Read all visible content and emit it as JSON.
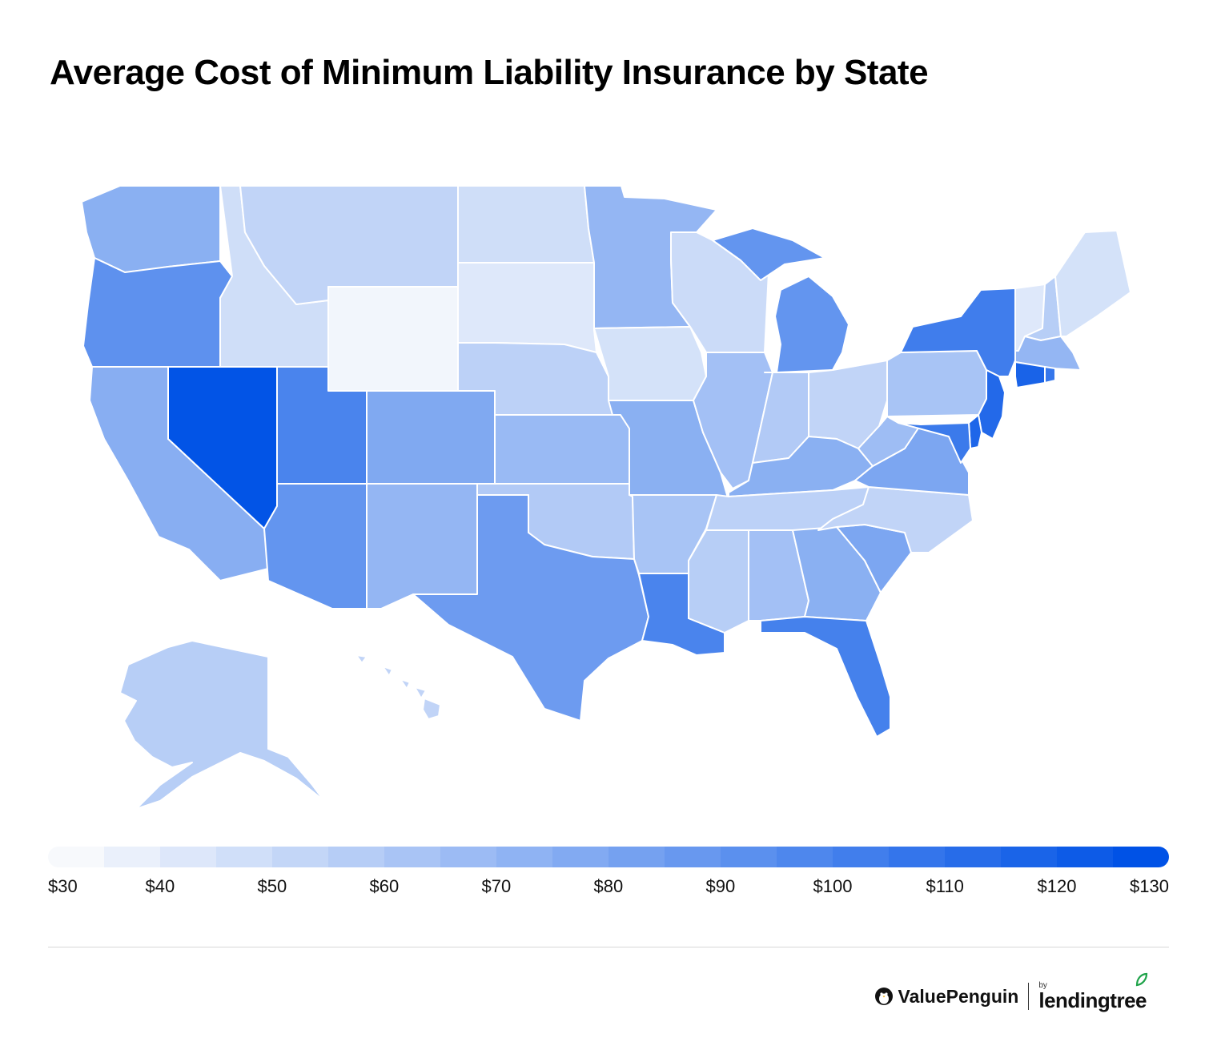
{
  "title": "Average Cost of Minimum Liability Insurance by State",
  "map": {
    "value_domain": [
      30,
      130
    ],
    "color_low": "#f7f9fc",
    "color_high": "#0052e6",
    "border_color": "#ffffff",
    "states": [
      {
        "name": "Washington",
        "value": 74
      },
      {
        "name": "Oregon",
        "value": 92
      },
      {
        "name": "California",
        "value": 75
      },
      {
        "name": "Nevada",
        "value": 129
      },
      {
        "name": "Idaho",
        "value": 46
      },
      {
        "name": "Montana",
        "value": 52
      },
      {
        "name": "Wyoming",
        "value": 32
      },
      {
        "name": "Utah",
        "value": 100
      },
      {
        "name": "Arizona",
        "value": 90
      },
      {
        "name": "Colorado",
        "value": 78
      },
      {
        "name": "New Mexico",
        "value": 70
      },
      {
        "name": "North Dakota",
        "value": 46
      },
      {
        "name": "South Dakota",
        "value": 40
      },
      {
        "name": "Nebraska",
        "value": 54
      },
      {
        "name": "Kansas",
        "value": 68
      },
      {
        "name": "Oklahoma",
        "value": 58
      },
      {
        "name": "Texas",
        "value": 86
      },
      {
        "name": "Minnesota",
        "value": 70
      },
      {
        "name": "Iowa",
        "value": 44
      },
      {
        "name": "Missouri",
        "value": 74
      },
      {
        "name": "Arkansas",
        "value": 62
      },
      {
        "name": "Louisiana",
        "value": 100
      },
      {
        "name": "Wisconsin",
        "value": 48
      },
      {
        "name": "Illinois",
        "value": 64
      },
      {
        "name": "Michigan",
        "value": 90
      },
      {
        "name": "Indiana",
        "value": 58
      },
      {
        "name": "Ohio",
        "value": 52
      },
      {
        "name": "Kentucky",
        "value": 74
      },
      {
        "name": "Tennessee",
        "value": 54
      },
      {
        "name": "Mississippi",
        "value": 56
      },
      {
        "name": "Alabama",
        "value": 64
      },
      {
        "name": "Georgia",
        "value": 74
      },
      {
        "name": "Florida",
        "value": 102
      },
      {
        "name": "South Carolina",
        "value": 80
      },
      {
        "name": "North Carolina",
        "value": 52
      },
      {
        "name": "Virginia",
        "value": 80
      },
      {
        "name": "West Virginia",
        "value": 66
      },
      {
        "name": "Pennsylvania",
        "value": 62
      },
      {
        "name": "New York",
        "value": 104
      },
      {
        "name": "Vermont",
        "value": 40
      },
      {
        "name": "New Hampshire",
        "value": 56
      },
      {
        "name": "Maine",
        "value": 44
      },
      {
        "name": "Massachusetts",
        "value": 70
      },
      {
        "name": "Rhode Island",
        "value": 108
      },
      {
        "name": "Connecticut",
        "value": 120
      },
      {
        "name": "New Jersey",
        "value": 116
      },
      {
        "name": "Delaware",
        "value": 118
      },
      {
        "name": "Maryland",
        "value": 106
      },
      {
        "name": "Alaska",
        "value": 56
      },
      {
        "name": "Hawaii",
        "value": 52
      }
    ]
  },
  "legend": {
    "segments": 20,
    "ticks": [
      "$30",
      "$40",
      "$50",
      "$60",
      "$70",
      "$80",
      "$90",
      "$100",
      "$110",
      "$120",
      "$130"
    ]
  },
  "brand": {
    "valuepenguin": "ValuePenguin",
    "by": "by",
    "lendingtree": "lendingtree",
    "penguin_icon": "penguin-icon",
    "leaf_icon": "leaf-icon",
    "leaf_color": "#1fa34a"
  }
}
